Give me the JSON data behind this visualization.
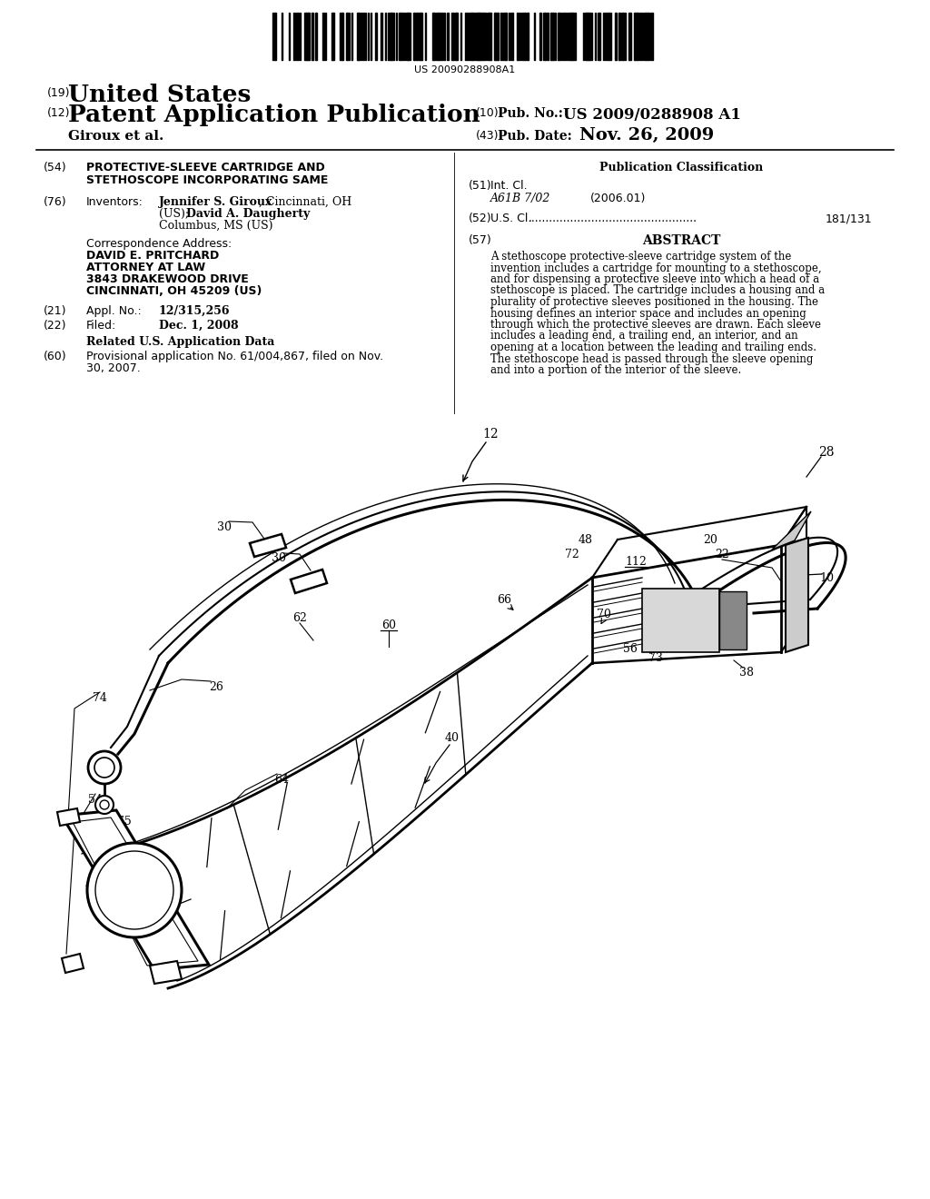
{
  "background_color": "#ffffff",
  "barcode_text": "US 20090288908A1",
  "header": {
    "country_num": "(19)",
    "country": "United States",
    "pub_type_num": "(12)",
    "pub_type": "Patent Application Publication",
    "pub_no_num": "(10)",
    "pub_no_label": "Pub. No.:",
    "pub_no": "US 2009/0288908 A1",
    "inventors": "Giroux et al.",
    "pub_date_num": "(43)",
    "pub_date_label": "Pub. Date:",
    "pub_date": "Nov. 26, 2009"
  },
  "left_col": {
    "title_num": "(54)",
    "title_line1": "PROTECTIVE-SLEEVE CARTRIDGE AND",
    "title_line2": "STETHOSCOPE INCORPORATING SAME",
    "inventors_num": "(76)",
    "inventors_label": "Inventors:",
    "inventors_line1": "Jennifer S. Giroux, Cincinnati, OH",
    "inventors_line2": "(US); David A. Daugherty,",
    "inventors_line3": "Columbus, MS (US)",
    "corr_label": "Correspondence Address:",
    "corr_name": "DAVID E. PRITCHARD",
    "corr_title": "ATTORNEY AT LAW",
    "corr_addr1": "3843 DRAKEWOOD DRIVE",
    "corr_addr2": "CINCINNATI, OH 45209 (US)",
    "appl_num": "(21)",
    "appl_label": "Appl. No.:",
    "appl_no": "12/315,256",
    "filed_num": "(22)",
    "filed_label": "Filed:",
    "filed_date": "Dec. 1, 2008",
    "related_header": "Related U.S. Application Data",
    "prov_num": "(60)",
    "prov_text": "Provisional application No. 61/004,867, filed on Nov.",
    "prov_text2": "30, 2007."
  },
  "right_col": {
    "pub_class_header": "Publication Classification",
    "int_cl_num": "(51)",
    "int_cl_label": "Int. Cl.",
    "int_cl_code": "A61B 7/02",
    "int_cl_year": "(2006.01)",
    "us_cl_num": "(52)",
    "us_cl_label": "U.S. Cl.",
    "us_cl_value": "181/131",
    "abstract_num": "(57)",
    "abstract_header": "ABSTRACT",
    "abstract_lines": [
      "A stethoscope protective-sleeve cartridge system of the",
      "invention includes a cartridge for mounting to a stethoscope,",
      "and for dispensing a protective sleeve into which a head of a",
      "stethoscope is placed. The cartridge includes a housing and a",
      "plurality of protective sleeves positioned in the housing. The",
      "housing defines an interior space and includes an opening",
      "through which the protective sleeves are drawn. Each sleeve",
      "includes a leading end, a trailing end, an interior, and an",
      "opening at a location between the leading and trailing ends.",
      "The stethoscope head is passed through the sleeve opening",
      "and into a portion of the interior of the sleeve."
    ]
  }
}
